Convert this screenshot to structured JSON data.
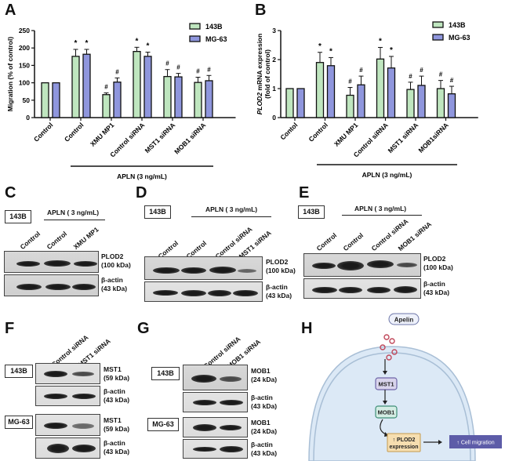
{
  "panels": {
    "A": "A",
    "B": "B",
    "C": "C",
    "D": "D",
    "E": "E",
    "F": "F",
    "G": "G",
    "H": "H"
  },
  "legend": {
    "series1": "143B",
    "series2": "MG-63",
    "color1": "#bfe6bf",
    "color2": "#8f96dd"
  },
  "chart_data": [
    {
      "type": "bar",
      "title": "A",
      "ylabel": "Migration (% of control)",
      "xlabel": "",
      "ylim": [
        0,
        250
      ],
      "yticks": [
        "0",
        "50",
        "100",
        "150",
        "200",
        "250"
      ],
      "categories": [
        "Control",
        "Control",
        "XMU MP1",
        "Control siRNA",
        "MST1 siRNA",
        "MOB1 siRNA"
      ],
      "group_label": "APLN (3 ng/mL)",
      "series": [
        {
          "name": "143B",
          "values": [
            100,
            176,
            66,
            190,
            118,
            101
          ],
          "errors": [
            0,
            20,
            5,
            12,
            20,
            15
          ],
          "marks": [
            "",
            "*",
            "#",
            "*",
            "#",
            "#"
          ]
        },
        {
          "name": "MG-63",
          "values": [
            100,
            182,
            102,
            176,
            117,
            106
          ],
          "errors": [
            0,
            14,
            12,
            12,
            10,
            15
          ],
          "marks": [
            "",
            "*",
            "#",
            "*",
            "#",
            "#"
          ]
        }
      ],
      "legend_position": "top-right",
      "grid": false
    },
    {
      "type": "bar",
      "title": "B",
      "ylabel": "PLOD2 mRNA expression (fold of control)",
      "xlabel": "",
      "ylim": [
        0,
        3
      ],
      "yticks": [
        "0",
        "1",
        "2",
        "3"
      ],
      "categories": [
        "Contol",
        "Control",
        "XMU MP1",
        "Control siRNA",
        "MST1 siRNA",
        "MOB1siRNA"
      ],
      "group_label": "APLN (3 ng/mL)",
      "series": [
        {
          "name": "143B",
          "values": [
            1.0,
            1.9,
            0.77,
            2.02,
            0.97,
            1.0
          ],
          "errors": [
            0,
            0.35,
            0.27,
            0.4,
            0.25,
            0.28
          ],
          "marks": [
            "",
            "*",
            "#",
            "*",
            "#",
            "#"
          ]
        },
        {
          "name": "MG-63",
          "values": [
            1.0,
            1.79,
            1.13,
            1.71,
            1.11,
            0.82
          ],
          "errors": [
            0,
            0.28,
            0.3,
            0.4,
            0.32,
            0.26
          ],
          "marks": [
            "",
            "*",
            "#",
            "*",
            "#",
            "#"
          ]
        }
      ],
      "legend_position": "top-right",
      "grid": false
    }
  ],
  "blots": {
    "C": {
      "cell_line": "143B",
      "treatment": "APLN ( 3 ng/mL)",
      "lanes": [
        "Control",
        "Control",
        "XMU MP1"
      ],
      "rows": [
        {
          "protein": "PLOD2",
          "size": "(100 kDa)"
        },
        {
          "protein": "β-actin",
          "size": "(43 kDa)"
        }
      ]
    },
    "D": {
      "cell_line": "143B",
      "treatment": "APLN ( 3 ng/mL)",
      "lanes": [
        "Control",
        "Control",
        "Control siRNA",
        "MST1 siRNA"
      ],
      "rows": [
        {
          "protein": "PLOD2",
          "size": "(100 kDa)"
        },
        {
          "protein": "β-actin",
          "size": "(43 kDa)"
        }
      ]
    },
    "E": {
      "cell_line": "143B",
      "treatment": "APLN ( 3 ng/mL)",
      "lanes": [
        "Control",
        "Control",
        "Control siRNA",
        "MOB1 siRNA"
      ],
      "rows": [
        {
          "protein": "PLOD2",
          "size": "(100 kDa)"
        },
        {
          "protein": "β-actin",
          "size": "(43 kDa)"
        }
      ]
    },
    "F": {
      "lanes": [
        "Control siRNA",
        "MST1 siRNA"
      ],
      "groups": [
        {
          "cell_line": "143B",
          "rows": [
            {
              "protein": "MST1",
              "size": "(59 kDa)"
            },
            {
              "protein": "β-actin",
              "size": "(43 kDa)"
            }
          ]
        },
        {
          "cell_line": "MG-63",
          "rows": [
            {
              "protein": "MST1",
              "size": "(59 kDa)"
            },
            {
              "protein": "β-actin",
              "size": "(43 kDa)"
            }
          ]
        }
      ]
    },
    "G": {
      "lanes": [
        "Control siRNA",
        "MOB1 siRNA"
      ],
      "groups": [
        {
          "cell_line": "143B",
          "rows": [
            {
              "protein": "MOB1",
              "size": "(24 kDa)"
            },
            {
              "protein": "β-actin",
              "size": "(43 kDa)"
            }
          ]
        },
        {
          "cell_line": "MG-63",
          "rows": [
            {
              "protein": "MOB1",
              "size": "(24 kDa)"
            },
            {
              "protein": "β-actin",
              "size": "(43 kDa)"
            }
          ]
        }
      ]
    }
  },
  "diagram": {
    "ligand": "Apelin",
    "node1": "MST1",
    "node2": "MOB1",
    "node3_line1": "↑ PLOD2",
    "node3_line2": "expression",
    "outcome": "↑ Cell migration"
  }
}
